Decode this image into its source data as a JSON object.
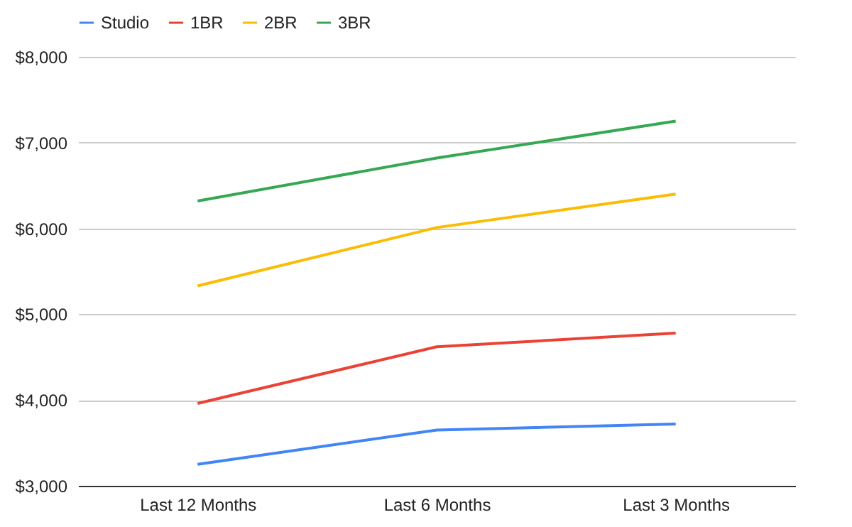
{
  "chart_data": {
    "type": "line",
    "categories": [
      "Last 12 Months",
      "Last 6 Months",
      "Last 3 Months"
    ],
    "series": [
      {
        "name": "Studio",
        "color": "#4285f4",
        "values": [
          3250,
          3650,
          3720
        ]
      },
      {
        "name": "1BR",
        "color": "#ea4335",
        "values": [
          3960,
          4620,
          4780
        ]
      },
      {
        "name": "2BR",
        "color": "#fbbc04",
        "values": [
          5330,
          6010,
          6400
        ]
      },
      {
        "name": "3BR",
        "color": "#34a853",
        "values": [
          6320,
          6820,
          7250
        ]
      }
    ],
    "ylim": [
      3000,
      8000
    ],
    "yticks": [
      {
        "value": 3000,
        "label": "$3,000"
      },
      {
        "value": 4000,
        "label": "$4,000"
      },
      {
        "value": 5000,
        "label": "$5,000"
      },
      {
        "value": 6000,
        "label": "$6,000"
      },
      {
        "value": 7000,
        "label": "$7,000"
      },
      {
        "value": 8000,
        "label": "$8,000"
      }
    ],
    "grid": "y",
    "legend": "top",
    "marker": "none",
    "line_style": "solid"
  }
}
